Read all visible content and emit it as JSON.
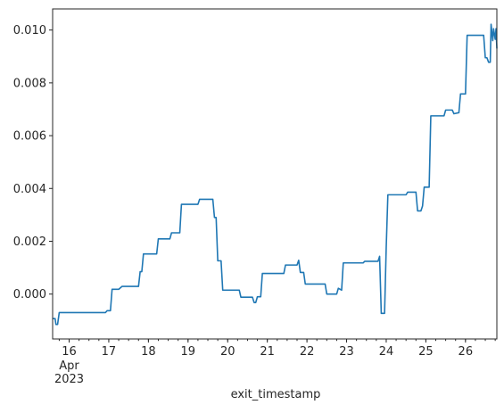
{
  "chart_data": {
    "type": "line",
    "title": "",
    "xlabel": "exit_timestamp",
    "ylabel": "",
    "xlim": [
      "2023-04-15T14:00",
      "2023-04-26T19:00"
    ],
    "ylim": [
      -0.0017,
      0.0108
    ],
    "grid": false,
    "legend": "none",
    "colors": {
      "line": "#1f77b4",
      "axis": "#262626",
      "background": "#ffffff"
    },
    "x_ticks": [
      {
        "x": "2023-04-16T00:00",
        "label": "16",
        "sub": [
          "Apr",
          "2023"
        ]
      },
      {
        "x": "2023-04-17T00:00",
        "label": "17"
      },
      {
        "x": "2023-04-18T00:00",
        "label": "18"
      },
      {
        "x": "2023-04-19T00:00",
        "label": "19"
      },
      {
        "x": "2023-04-20T00:00",
        "label": "20"
      },
      {
        "x": "2023-04-21T00:00",
        "label": "21"
      },
      {
        "x": "2023-04-22T00:00",
        "label": "22"
      },
      {
        "x": "2023-04-23T00:00",
        "label": "23"
      },
      {
        "x": "2023-04-24T00:00",
        "label": "24"
      },
      {
        "x": "2023-04-25T00:00",
        "label": "25"
      },
      {
        "x": "2023-04-26T00:00",
        "label": "26"
      }
    ],
    "y_ticks": [
      {
        "y": 0.0,
        "label": "0.000"
      },
      {
        "y": 0.002,
        "label": "0.002"
      },
      {
        "y": 0.004,
        "label": "0.004"
      },
      {
        "y": 0.006,
        "label": "0.006"
      },
      {
        "y": 0.008,
        "label": "0.008"
      },
      {
        "y": 0.01,
        "label": "0.010"
      }
    ],
    "series": [
      {
        "points": [
          [
            "2023-04-15T14:00",
            -0.00093
          ],
          [
            "2023-04-15T15:30",
            -0.00093
          ],
          [
            "2023-04-15T16:00",
            -0.00115
          ],
          [
            "2023-04-15T17:00",
            -0.00115
          ],
          [
            "2023-04-15T18:00",
            -0.0007
          ],
          [
            "2023-04-16T22:00",
            -0.0007
          ],
          [
            "2023-04-16T23:00",
            -0.00063
          ],
          [
            "2023-04-17T01:00",
            -0.00063
          ],
          [
            "2023-04-17T02:00",
            0.00018
          ],
          [
            "2023-04-17T06:00",
            0.00018
          ],
          [
            "2023-04-17T08:00",
            0.00029
          ],
          [
            "2023-04-17T18:00",
            0.00029
          ],
          [
            "2023-04-17T19:00",
            0.00085
          ],
          [
            "2023-04-17T20:00",
            0.00085
          ],
          [
            "2023-04-17T21:00",
            0.00152
          ],
          [
            "2023-04-18T05:00",
            0.00152
          ],
          [
            "2023-04-18T06:00",
            0.00209
          ],
          [
            "2023-04-18T13:00",
            0.00209
          ],
          [
            "2023-04-18T14:00",
            0.00232
          ],
          [
            "2023-04-18T19:00",
            0.00232
          ],
          [
            "2023-04-18T20:00",
            0.0034
          ],
          [
            "2023-04-19T06:00",
            0.0034
          ],
          [
            "2023-04-19T07:00",
            0.00359
          ],
          [
            "2023-04-19T15:00",
            0.00359
          ],
          [
            "2023-04-19T16:00",
            0.0029
          ],
          [
            "2023-04-19T17:00",
            0.0029
          ],
          [
            "2023-04-19T18:00",
            0.00126
          ],
          [
            "2023-04-19T20:00",
            0.00126
          ],
          [
            "2023-04-19T21:00",
            0.00015
          ],
          [
            "2023-04-20T07:00",
            0.00015
          ],
          [
            "2023-04-20T08:00",
            -0.00012
          ],
          [
            "2023-04-20T15:00",
            -0.00012
          ],
          [
            "2023-04-20T16:00",
            -0.00032
          ],
          [
            "2023-04-20T17:00",
            -0.00032
          ],
          [
            "2023-04-20T18:00",
            -0.0001
          ],
          [
            "2023-04-20T20:00",
            -0.0001
          ],
          [
            "2023-04-20T21:00",
            0.00078
          ],
          [
            "2023-04-21T10:00",
            0.00078
          ],
          [
            "2023-04-21T11:00",
            0.0011
          ],
          [
            "2023-04-21T18:00",
            0.0011
          ],
          [
            "2023-04-21T19:00",
            0.00128
          ],
          [
            "2023-04-21T20:00",
            0.00082
          ],
          [
            "2023-04-21T22:00",
            0.00082
          ],
          [
            "2023-04-21T23:00",
            0.00038
          ],
          [
            "2023-04-22T11:00",
            0.00038
          ],
          [
            "2023-04-22T12:00",
            0.0
          ],
          [
            "2023-04-22T18:00",
            0.0
          ],
          [
            "2023-04-22T19:00",
            0.00022
          ],
          [
            "2023-04-22T21:00",
            0.00015
          ],
          [
            "2023-04-22T22:00",
            0.00118
          ],
          [
            "2023-04-23T10:00",
            0.00118
          ],
          [
            "2023-04-23T11:00",
            0.00124
          ],
          [
            "2023-04-23T19:00",
            0.00124
          ],
          [
            "2023-04-23T20:00",
            0.00143
          ],
          [
            "2023-04-23T21:00",
            -0.00073
          ],
          [
            "2023-04-23T23:00",
            -0.00073
          ],
          [
            "2023-04-24T00:00",
            0.00176
          ],
          [
            "2023-04-24T01:00",
            0.00376
          ],
          [
            "2023-04-24T12:00",
            0.00376
          ],
          [
            "2023-04-24T13:00",
            0.00386
          ],
          [
            "2023-04-24T18:00",
            0.00386
          ],
          [
            "2023-04-24T19:00",
            0.00315
          ],
          [
            "2023-04-24T21:00",
            0.00315
          ],
          [
            "2023-04-24T22:00",
            0.00334
          ],
          [
            "2023-04-24T23:00",
            0.00405
          ],
          [
            "2023-04-25T02:00",
            0.00405
          ],
          [
            "2023-04-25T03:00",
            0.00675
          ],
          [
            "2023-04-25T11:00",
            0.00675
          ],
          [
            "2023-04-25T12:00",
            0.00697
          ],
          [
            "2023-04-25T16:00",
            0.00697
          ],
          [
            "2023-04-25T17:00",
            0.00683
          ],
          [
            "2023-04-25T20:00",
            0.00687
          ],
          [
            "2023-04-25T21:00",
            0.00758
          ],
          [
            "2023-04-26T00:00",
            0.00758
          ],
          [
            "2023-04-26T01:00",
            0.0098
          ],
          [
            "2023-04-26T11:00",
            0.0098
          ],
          [
            "2023-04-26T12:00",
            0.00895
          ],
          [
            "2023-04-26T13:00",
            0.00895
          ],
          [
            "2023-04-26T14:00",
            0.00878
          ],
          [
            "2023-04-26T15:00",
            0.00878
          ],
          [
            "2023-04-26T15:30",
            0.01022
          ],
          [
            "2023-04-26T16:30",
            0.0096
          ],
          [
            "2023-04-26T17:00",
            0.01005
          ],
          [
            "2023-04-26T18:00",
            0.00965
          ],
          [
            "2023-04-26T18:30",
            0.01005
          ],
          [
            "2023-04-26T19:00",
            0.0093
          ]
        ]
      }
    ]
  }
}
